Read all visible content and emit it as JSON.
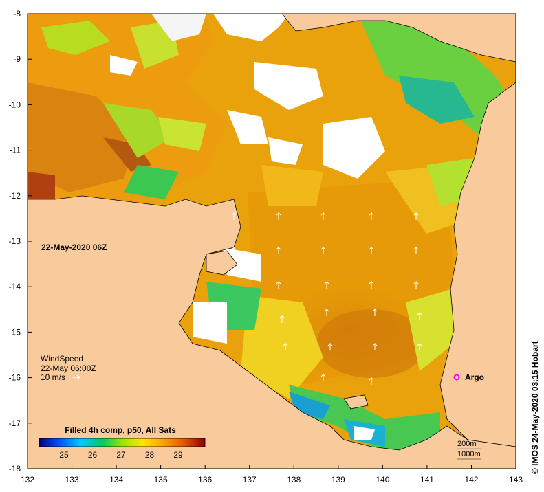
{
  "map": {
    "date_label": "22-May-2020 06Z",
    "credit": "© IMOS 24-May-2020 03:15 Hobart",
    "lon_ticks": [
      "132",
      "133",
      "134",
      "135",
      "136",
      "137",
      "138",
      "139",
      "140",
      "141",
      "142",
      "143"
    ],
    "lat_ticks": [
      "-8",
      "-9",
      "-10",
      "-11",
      "-12",
      "-13",
      "-14",
      "-15",
      "-16",
      "-17",
      "-18"
    ],
    "wind": {
      "title": "WindSpeed",
      "time": "22-May 06:00Z",
      "scale": "10 m/s"
    },
    "argo_label": "Argo",
    "depth_contours": [
      "200m",
      "1000m"
    ],
    "colorbar": {
      "title": "Filled 4h comp, p50, All Sats",
      "ticks": [
        "25",
        "26",
        "27",
        "28",
        "29"
      ]
    },
    "colors": {
      "land": "#f9cb9c",
      "argo": "#ff00ff",
      "frame": "#000000"
    }
  }
}
